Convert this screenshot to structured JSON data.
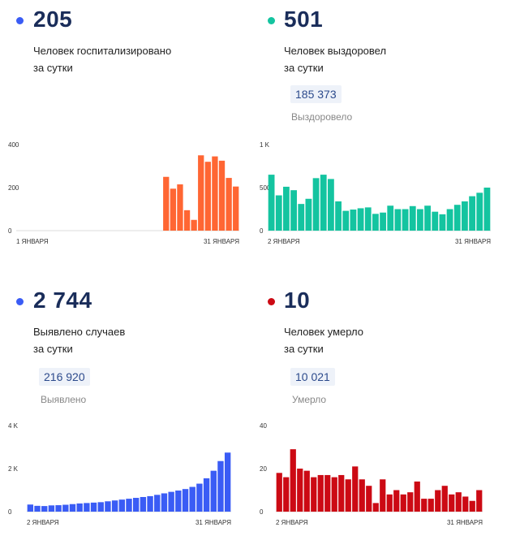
{
  "panels": [
    {
      "value": "205",
      "desc_line1": "Человек госпитализировано",
      "desc_line2": "за сутки",
      "total": "",
      "total_label": "",
      "color": "#ff6633"
    },
    {
      "value": "501",
      "desc_line1": "Человек выздоровел",
      "desc_line2": "за сутки",
      "total": "185 373",
      "total_label": "Выздоровело",
      "color": "#14c4a0"
    },
    {
      "value": "2 744",
      "desc_line1": "Выявлено случаев",
      "desc_line2": "за сутки",
      "total": "216 920",
      "total_label": "Выявлено",
      "color": "#3a5cf5"
    },
    {
      "value": "10",
      "desc_line1": "Человек умерло",
      "desc_line2": "за сутки",
      "total": "10 021",
      "total_label": "Умерло",
      "color": "#cc0a14"
    }
  ],
  "chart_data": [
    {
      "type": "bar",
      "ylim": [
        0,
        400
      ],
      "yticks": [
        "0",
        "200",
        "400"
      ],
      "x_start": "1 ЯНВАРЯ",
      "x_end": "31 ЯНВАРЯ",
      "color": "#ff6633",
      "values": [
        null,
        null,
        null,
        null,
        null,
        null,
        null,
        null,
        null,
        null,
        null,
        null,
        null,
        null,
        null,
        null,
        null,
        null,
        null,
        null,
        null,
        250,
        195,
        215,
        95,
        50,
        350,
        320,
        345,
        325,
        245,
        205
      ]
    },
    {
      "type": "bar",
      "ylim": [
        0,
        1000
      ],
      "yticks": [
        "0",
        "500",
        "1 K"
      ],
      "x_start": "2 ЯНВАРЯ",
      "x_end": "31 ЯНВАРЯ",
      "color": "#14c4a0",
      "values": [
        650,
        410,
        510,
        470,
        310,
        370,
        610,
        650,
        600,
        340,
        230,
        245,
        260,
        270,
        195,
        210,
        290,
        250,
        250,
        285,
        250,
        290,
        220,
        190,
        250,
        300,
        340,
        400,
        440,
        500
      ]
    },
    {
      "type": "bar",
      "ylim": [
        0,
        4000
      ],
      "yticks": [
        "0",
        "2 K",
        "4 K"
      ],
      "x_start": "2 ЯНВАРЯ",
      "x_end": "31 ЯНВАРЯ",
      "color": "#3a5cf5",
      "values": [
        330,
        270,
        260,
        290,
        300,
        320,
        350,
        380,
        400,
        420,
        440,
        480,
        520,
        560,
        600,
        640,
        680,
        720,
        780,
        850,
        920,
        980,
        1050,
        1150,
        1300,
        1550,
        1900,
        2350,
        2744
      ]
    },
    {
      "type": "bar",
      "ylim": [
        0,
        40
      ],
      "yticks": [
        "0",
        "20",
        "40"
      ],
      "x_start": "2 ЯНВАРЯ",
      "x_end": "31 ЯНВАРЯ",
      "color": "#cc0a14",
      "values": [
        18,
        16,
        29,
        20,
        19,
        16,
        17,
        17,
        16,
        17,
        15,
        21,
        15,
        12,
        4,
        15,
        8,
        10,
        8,
        9,
        14,
        6,
        6,
        10,
        12,
        8,
        9,
        7,
        5,
        10
      ]
    }
  ]
}
